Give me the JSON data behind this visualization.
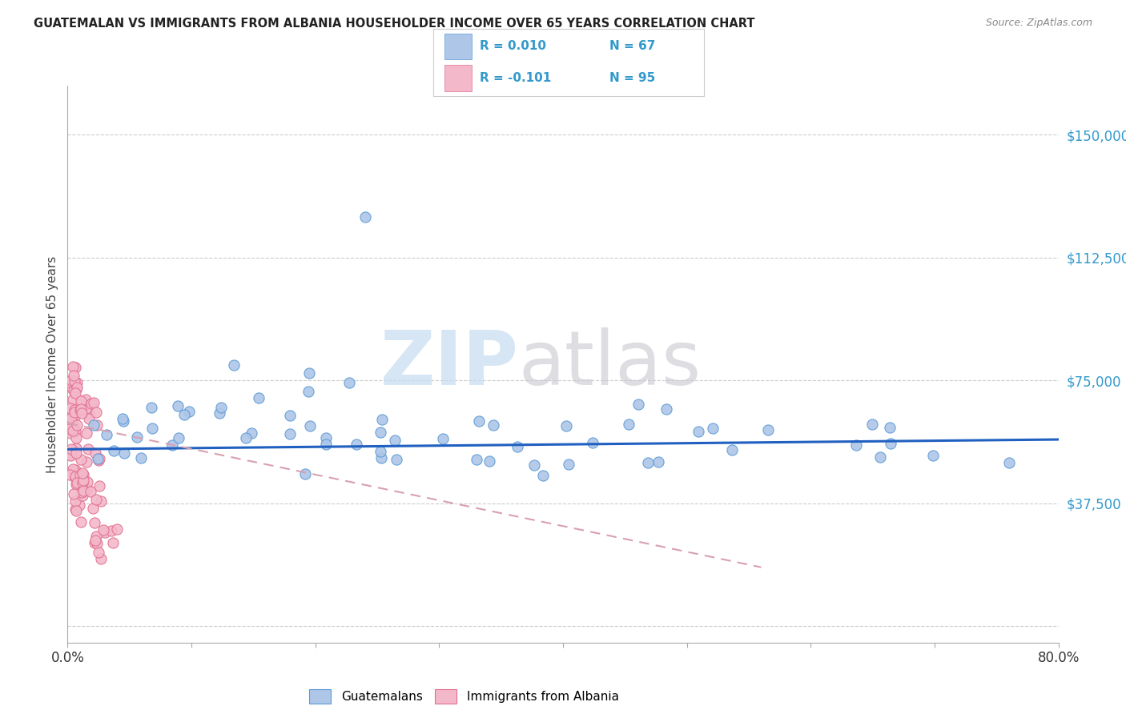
{
  "title": "GUATEMALAN VS IMMIGRANTS FROM ALBANIA HOUSEHOLDER INCOME OVER 65 YEARS CORRELATION CHART",
  "source": "Source: ZipAtlas.com",
  "ylabel": "Householder Income Over 65 years",
  "ytick_labels": [
    "",
    "$37,500",
    "$75,000",
    "$112,500",
    "$150,000"
  ],
  "ytick_vals": [
    0,
    37500,
    75000,
    112500,
    150000
  ],
  "xlim": [
    0.0,
    0.8
  ],
  "ylim": [
    -5000,
    165000
  ],
  "legend_r1": "R = 0.010",
  "legend_n1": "N = 67",
  "legend_r2": "R = -0.101",
  "legend_n2": "N = 95",
  "scatter_blue_color": "#aec6e8",
  "scatter_blue_edge": "#5b9bd5",
  "scatter_pink_color": "#f4b8cb",
  "scatter_pink_edge": "#e07090",
  "line_blue_color": "#2060c0",
  "line_pink_color": "#d8a0b0",
  "watermark_zip_color": "#c5dcf0",
  "watermark_atlas_color": "#c8c8d0"
}
